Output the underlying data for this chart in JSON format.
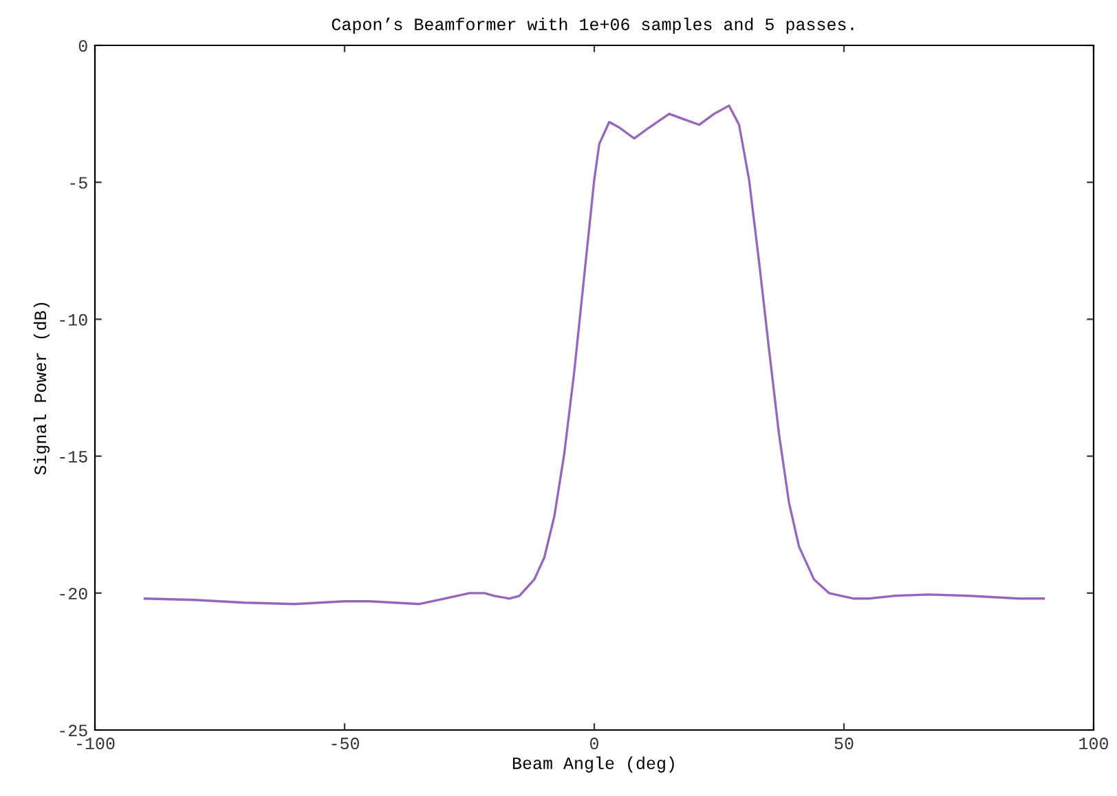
{
  "chart_data": {
    "type": "line",
    "title": "Capon’s Beamformer with 1e+06 samples and 5 passes.",
    "xlabel": "Beam Angle (deg)",
    "ylabel": "Signal Power (dB)",
    "xlim": [
      -100,
      100
    ],
    "xticks": [
      -100,
      -50,
      0,
      50,
      100
    ],
    "ylim": [
      -25,
      0
    ],
    "yticks": [
      -25,
      -20,
      -15,
      -10,
      -5,
      0
    ],
    "grid": false,
    "legend": false,
    "series": [
      {
        "color": "#9467bd",
        "x": [
          -90,
          -80,
          -70,
          -60,
          -50,
          -45,
          -40,
          -35,
          -30,
          -25,
          -22,
          -20,
          -17,
          -15,
          -12,
          -10,
          -8,
          -6,
          -4,
          -2,
          0,
          1,
          3,
          5,
          8,
          11,
          15,
          18,
          21,
          24,
          27,
          29,
          31,
          33,
          35,
          37,
          39,
          41,
          44,
          47,
          52,
          55,
          60,
          67,
          75,
          85,
          90
        ],
        "values": [
          -20.2,
          -20.25,
          -20.35,
          -20.4,
          -20.3,
          -20.3,
          -20.35,
          -20.4,
          -20.2,
          -20.0,
          -20.0,
          -20.1,
          -20.2,
          -20.1,
          -19.5,
          -18.7,
          -17.2,
          -14.9,
          -11.9,
          -8.4,
          -4.9,
          -3.6,
          -2.8,
          -3.0,
          -3.4,
          -3.0,
          -2.5,
          -2.7,
          -2.9,
          -2.5,
          -2.2,
          -2.9,
          -4.9,
          -7.9,
          -11.1,
          -14.2,
          -16.7,
          -18.3,
          -19.5,
          -20.0,
          -20.2,
          -20.2,
          -20.1,
          -20.05,
          -20.1,
          -20.2,
          -20.2
        ]
      }
    ]
  }
}
